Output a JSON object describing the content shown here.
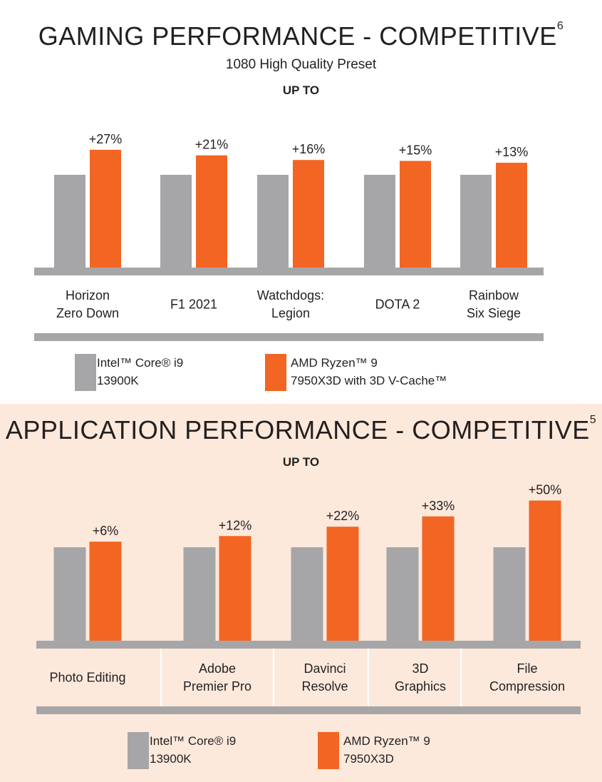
{
  "colors": {
    "intel": "#a6a6a8",
    "amd": "#f26522",
    "axis": "#a6a6a8",
    "section2_bg": "#fde9dc"
  },
  "gaming": {
    "title": "GAMING PERFORMANCE - COMPETITIVE",
    "title_sup": "6",
    "subtitle": "1080 High Quality Preset",
    "up_to": "UP TO",
    "legend": {
      "intel_line1": "Intel™ Core® i9",
      "intel_line2": "13900K",
      "amd_line1": "AMD Ryzen™ 9",
      "amd_line2": "7950X3D with 3D V-Cache™"
    }
  },
  "apps": {
    "title": "APPLICATION PERFORMANCE - COMPETITIVE",
    "title_sup": "5",
    "up_to": "UP TO",
    "legend": {
      "intel_line1": "Intel™ Core® i9",
      "intel_line2": "13900K",
      "amd_line1": "AMD Ryzen™ 9",
      "amd_line2": "7950X3D"
    }
  },
  "chart_data": [
    {
      "type": "bar",
      "title": "GAMING PERFORMANCE - COMPETITIVE",
      "subtitle": "1080 High Quality Preset",
      "categories": [
        [
          "Horizon",
          "Zero Down"
        ],
        [
          "F1 2021"
        ],
        [
          "Watchdogs:",
          "Legion"
        ],
        [
          "DOTA 2"
        ],
        [
          "Rainbow",
          "Six Siege"
        ]
      ],
      "series": [
        {
          "name": "Intel™ Core® i9 13900K",
          "values": [
            100,
            100,
            100,
            100,
            100
          ]
        },
        {
          "name": "AMD Ryzen™ 9 7950X3D with 3D V-Cache™",
          "values": [
            127,
            121,
            116,
            115,
            113
          ]
        }
      ],
      "labels": [
        "+27%",
        "+21%",
        "+16%",
        "+15%",
        "+13%"
      ],
      "ylim": [
        0,
        130
      ]
    },
    {
      "type": "bar",
      "title": "APPLICATION PERFORMANCE - COMPETITIVE",
      "categories": [
        [
          "Photo Editing"
        ],
        [
          "Adobe",
          "Premier Pro"
        ],
        [
          "Davinci",
          "Resolve"
        ],
        [
          "3D",
          "Graphics"
        ],
        [
          "File",
          "Compression"
        ]
      ],
      "series": [
        {
          "name": "Intel™ Core® i9 13900K",
          "values": [
            100,
            100,
            100,
            100,
            100
          ]
        },
        {
          "name": "AMD Ryzen™ 9 7950X3D",
          "values": [
            106,
            112,
            122,
            133,
            150
          ]
        }
      ],
      "labels": [
        "+6%",
        "+12%",
        "+22%",
        "+33%",
        "+50%"
      ],
      "ylim": [
        0,
        165
      ]
    }
  ]
}
